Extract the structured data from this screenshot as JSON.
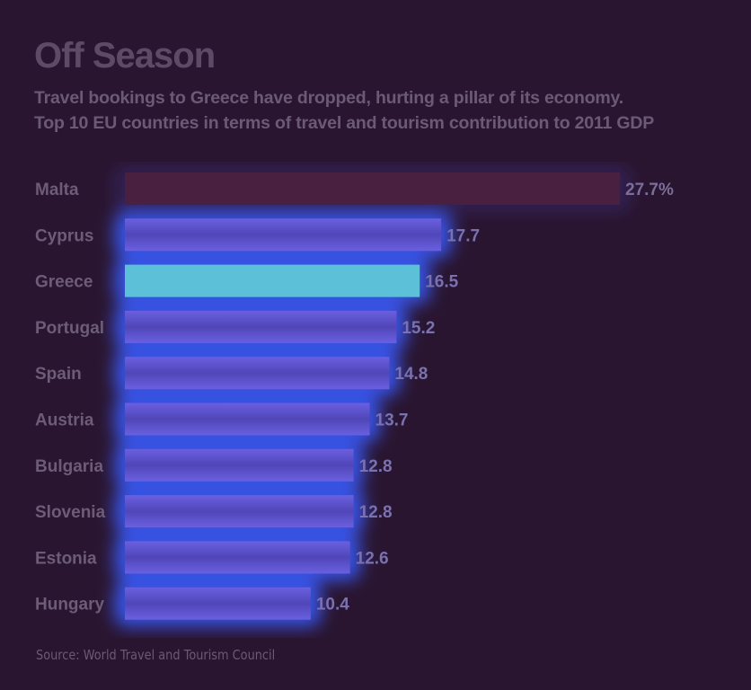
{
  "header": {
    "title": "Off Season",
    "subtitle_1": "Travel bookings to Greece have dropped, hurting a pillar of its economy.",
    "subtitle_2": "Top 10 EU countries in terms of travel and tourism contribution to 2011 GDP"
  },
  "footer": {
    "source": "Source: World Travel and Tourism Council"
  },
  "colors": {
    "background": "#2a1530",
    "highlight_bar": "#5cc0d8",
    "bar": "#5a52c8",
    "malta_bar": "#4a2040",
    "glow": "#3a5cff",
    "text": "#6b5a76"
  },
  "chart_data": {
    "type": "bar",
    "orientation": "horizontal",
    "categories": [
      "Malta",
      "Cyprus",
      "Greece",
      "Portugal",
      "Spain",
      "Austria",
      "Bulgaria",
      "Slovenia",
      "Estonia",
      "Hungary"
    ],
    "values": [
      27.7,
      17.7,
      16.5,
      15.2,
      14.8,
      13.7,
      12.8,
      12.8,
      12.6,
      10.4
    ],
    "value_labels": [
      "27.7%",
      "17.7",
      "16.5",
      "15.2",
      "14.8",
      "13.7",
      "12.8",
      "12.8",
      "12.6",
      "10.4"
    ],
    "highlight": "Greece",
    "title": "Off Season",
    "xlabel": "",
    "ylabel": "",
    "xlim": [
      0,
      27.7
    ],
    "grid": false,
    "legend": "none"
  }
}
